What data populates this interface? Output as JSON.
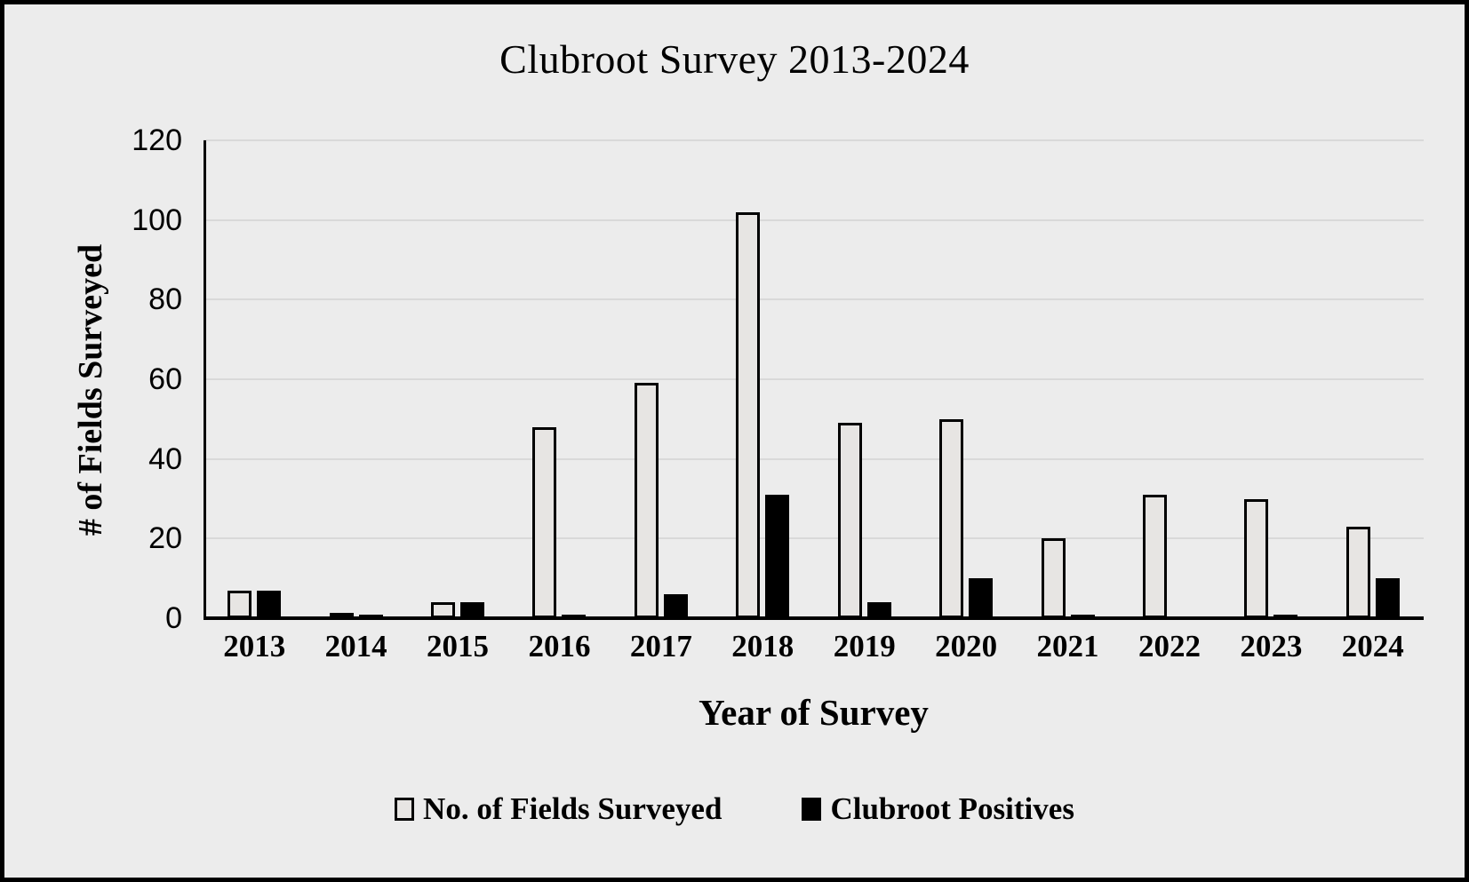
{
  "title": "Clubroot Survey 2013-2024",
  "colors": {
    "background": "#ececec",
    "frame_border": "#000000",
    "gridline": "#d9d9d9",
    "fields_bar_fill": "#e7e5e3",
    "fields_bar_border": "#000000",
    "positives_bar_fill": "#000000",
    "text": "#000000"
  },
  "chart_data": {
    "type": "bar",
    "title": "Clubroot Survey 2013-2024",
    "xlabel": "Year of Survey",
    "ylabel": "# of Fields Surveyed",
    "categories": [
      "2013",
      "2014",
      "2015",
      "2016",
      "2017",
      "2018",
      "2019",
      "2020",
      "2021",
      "2022",
      "2023",
      "2024"
    ],
    "series": [
      {
        "name": "No. of Fields Surveyed",
        "values": [
          7,
          1,
          4,
          48,
          59,
          102,
          49,
          50,
          20,
          31,
          30,
          23
        ]
      },
      {
        "name": "Clubroot Positives",
        "values": [
          7,
          1,
          4,
          1,
          6,
          31,
          4,
          10,
          1,
          0,
          1,
          10
        ]
      }
    ],
    "ylim": [
      0,
      120
    ],
    "ytick_step": 20,
    "ytick_labels": [
      "0",
      "20",
      "40",
      "60",
      "80",
      "100",
      "120"
    ],
    "grid": "horizontal",
    "legend_position": "bottom"
  }
}
